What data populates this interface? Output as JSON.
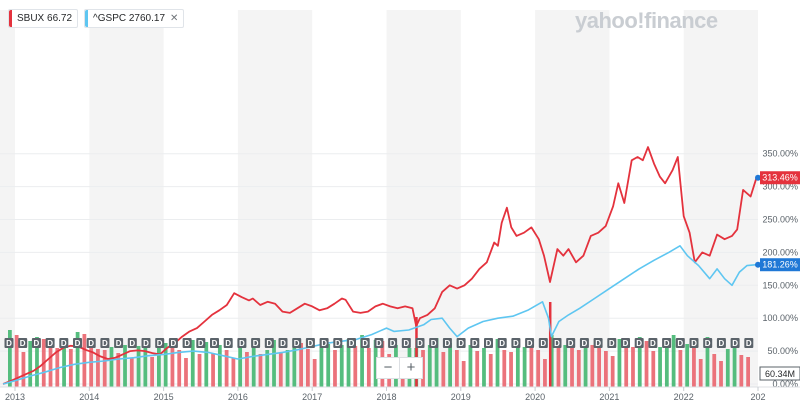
{
  "legend": [
    {
      "ticker": "SBUX",
      "value": "66.72",
      "color": "#e4323d"
    },
    {
      "ticker": "^GSPC",
      "value": "2760.17",
      "color": "#5ec6f1",
      "close": "✕"
    }
  ],
  "brand": "yahoo!finance",
  "zoom": {
    "minus": "−",
    "plus": "+"
  },
  "chart_data": {
    "type": "line",
    "x_ticks": [
      "2013",
      "2014",
      "2015",
      "2016",
      "2017",
      "2018",
      "2019",
      "2020",
      "2021",
      "2022",
      "202"
    ],
    "y_ticks": [
      "0.00%",
      "50.00%",
      "100.00%",
      "150.00%",
      "200.00%",
      "250.00%",
      "300.00%",
      "350.00%"
    ],
    "ylim": [
      0,
      360
    ],
    "x_range": [
      2012.83,
      2023.0
    ],
    "price_labels": [
      {
        "series": "SBUX",
        "text": "313.46%",
        "value": 313.46,
        "color": "#e4323d"
      },
      {
        "series": "^GSPC",
        "text": "181.26%",
        "value": 181.26,
        "color": "#1f78d6"
      }
    ],
    "volume_label": "60.34M",
    "dividend_marker": "D",
    "alt_bands": true,
    "series": [
      {
        "name": "SBUX",
        "color": "#e4323d",
        "points": [
          [
            2012.84,
            0
          ],
          [
            2012.95,
            5
          ],
          [
            2013.05,
            10
          ],
          [
            2013.15,
            15
          ],
          [
            2013.25,
            20
          ],
          [
            2013.35,
            28
          ],
          [
            2013.45,
            38
          ],
          [
            2013.55,
            48
          ],
          [
            2013.65,
            55
          ],
          [
            2013.75,
            58
          ],
          [
            2013.85,
            57
          ],
          [
            2013.95,
            52
          ],
          [
            2014.05,
            48
          ],
          [
            2014.15,
            42
          ],
          [
            2014.25,
            38
          ],
          [
            2014.35,
            40
          ],
          [
            2014.45,
            45
          ],
          [
            2014.55,
            50
          ],
          [
            2014.65,
            51
          ],
          [
            2014.75,
            50
          ],
          [
            2014.85,
            47
          ],
          [
            2014.95,
            45
          ],
          [
            2015.05,
            55
          ],
          [
            2015.15,
            62
          ],
          [
            2015.25,
            72
          ],
          [
            2015.35,
            80
          ],
          [
            2015.45,
            85
          ],
          [
            2015.55,
            95
          ],
          [
            2015.65,
            105
          ],
          [
            2015.75,
            112
          ],
          [
            2015.85,
            120
          ],
          [
            2015.95,
            138
          ],
          [
            2016.05,
            132
          ],
          [
            2016.15,
            127
          ],
          [
            2016.2,
            130
          ],
          [
            2016.3,
            120
          ],
          [
            2016.4,
            125
          ],
          [
            2016.5,
            122
          ],
          [
            2016.6,
            110
          ],
          [
            2016.7,
            108
          ],
          [
            2016.8,
            115
          ],
          [
            2016.9,
            122
          ],
          [
            2017.0,
            118
          ],
          [
            2017.1,
            112
          ],
          [
            2017.2,
            115
          ],
          [
            2017.3,
            122
          ],
          [
            2017.4,
            130
          ],
          [
            2017.45,
            128
          ],
          [
            2017.55,
            110
          ],
          [
            2017.65,
            108
          ],
          [
            2017.75,
            110
          ],
          [
            2017.85,
            118
          ],
          [
            2017.95,
            122
          ],
          [
            2018.05,
            118
          ],
          [
            2018.15,
            115
          ],
          [
            2018.25,
            118
          ],
          [
            2018.35,
            115
          ],
          [
            2018.4,
            88
          ],
          [
            2018.45,
            100
          ],
          [
            2018.55,
            105
          ],
          [
            2018.65,
            115
          ],
          [
            2018.75,
            140
          ],
          [
            2018.85,
            150
          ],
          [
            2018.95,
            145
          ],
          [
            2019.05,
            150
          ],
          [
            2019.15,
            160
          ],
          [
            2019.25,
            175
          ],
          [
            2019.35,
            185
          ],
          [
            2019.45,
            215
          ],
          [
            2019.5,
            210
          ],
          [
            2019.55,
            245
          ],
          [
            2019.62,
            268
          ],
          [
            2019.68,
            238
          ],
          [
            2019.75,
            225
          ],
          [
            2019.85,
            230
          ],
          [
            2019.95,
            238
          ],
          [
            2020.05,
            220
          ],
          [
            2020.12,
            195
          ],
          [
            2020.2,
            155
          ],
          [
            2020.3,
            205
          ],
          [
            2020.38,
            195
          ],
          [
            2020.45,
            205
          ],
          [
            2020.55,
            185
          ],
          [
            2020.65,
            195
          ],
          [
            2020.75,
            225
          ],
          [
            2020.85,
            230
          ],
          [
            2020.95,
            240
          ],
          [
            2021.05,
            270
          ],
          [
            2021.12,
            305
          ],
          [
            2021.2,
            275
          ],
          [
            2021.3,
            340
          ],
          [
            2021.38,
            345
          ],
          [
            2021.45,
            340
          ],
          [
            2021.52,
            360
          ],
          [
            2021.6,
            335
          ],
          [
            2021.68,
            315
          ],
          [
            2021.75,
            305
          ],
          [
            2021.85,
            325
          ],
          [
            2021.92,
            345
          ],
          [
            2022.0,
            255
          ],
          [
            2022.08,
            230
          ],
          [
            2022.15,
            185
          ],
          [
            2022.25,
            200
          ],
          [
            2022.35,
            195
          ],
          [
            2022.45,
            227
          ],
          [
            2022.55,
            220
          ],
          [
            2022.65,
            225
          ],
          [
            2022.72,
            235
          ],
          [
            2022.8,
            295
          ],
          [
            2022.9,
            285
          ],
          [
            2022.98,
            313.46
          ]
        ]
      },
      {
        "name": "^GSPC",
        "color": "#5ec6f1",
        "points": [
          [
            2012.84,
            0
          ],
          [
            2013.0,
            5
          ],
          [
            2013.2,
            12
          ],
          [
            2013.4,
            18
          ],
          [
            2013.6,
            25
          ],
          [
            2013.8,
            30
          ],
          [
            2014.0,
            33
          ],
          [
            2014.2,
            35
          ],
          [
            2014.4,
            38
          ],
          [
            2014.6,
            40
          ],
          [
            2014.8,
            43
          ],
          [
            2015.0,
            45
          ],
          [
            2015.2,
            48
          ],
          [
            2015.4,
            50
          ],
          [
            2015.6,
            48
          ],
          [
            2015.8,
            43
          ],
          [
            2016.0,
            38
          ],
          [
            2016.2,
            42
          ],
          [
            2016.4,
            45
          ],
          [
            2016.6,
            48
          ],
          [
            2016.8,
            52
          ],
          [
            2017.0,
            57
          ],
          [
            2017.2,
            62
          ],
          [
            2017.4,
            65
          ],
          [
            2017.6,
            68
          ],
          [
            2017.8,
            75
          ],
          [
            2018.0,
            85
          ],
          [
            2018.1,
            80
          ],
          [
            2018.3,
            82
          ],
          [
            2018.5,
            90
          ],
          [
            2018.6,
            98
          ],
          [
            2018.75,
            100
          ],
          [
            2018.85,
            85
          ],
          [
            2018.95,
            72
          ],
          [
            2019.1,
            85
          ],
          [
            2019.3,
            95
          ],
          [
            2019.5,
            100
          ],
          [
            2019.7,
            103
          ],
          [
            2019.9,
            112
          ],
          [
            2020.1,
            125
          ],
          [
            2020.18,
            100
          ],
          [
            2020.22,
            72
          ],
          [
            2020.32,
            95
          ],
          [
            2020.45,
            105
          ],
          [
            2020.6,
            115
          ],
          [
            2020.8,
            130
          ],
          [
            2021.0,
            145
          ],
          [
            2021.2,
            160
          ],
          [
            2021.4,
            175
          ],
          [
            2021.6,
            188
          ],
          [
            2021.8,
            200
          ],
          [
            2021.95,
            210
          ],
          [
            2022.05,
            195
          ],
          [
            2022.2,
            180
          ],
          [
            2022.35,
            160
          ],
          [
            2022.45,
            175
          ],
          [
            2022.55,
            160
          ],
          [
            2022.65,
            150
          ],
          [
            2022.75,
            170
          ],
          [
            2022.85,
            180
          ],
          [
            2022.98,
            181.26
          ]
        ]
      }
    ],
    "volume": [
      57,
      52,
      35,
      46,
      50,
      48,
      44,
      39,
      41,
      38,
      55,
      53,
      46,
      38,
      37,
      40,
      34,
      42,
      29,
      41,
      44,
      30,
      42,
      44,
      41,
      37,
      29,
      47,
      33,
      45,
      34,
      42,
      37,
      29,
      41,
      35,
      39,
      33,
      37,
      47,
      34,
      37,
      48,
      44,
      38,
      28,
      40,
      43,
      37,
      42,
      48,
      41,
      52,
      39,
      47,
      46,
      33,
      42,
      30,
      39,
      39,
      37,
      42,
      49,
      35,
      44,
      37,
      26,
      42,
      36,
      39,
      33,
      48,
      37,
      35,
      40,
      40,
      39,
      37,
      28,
      52,
      41,
      42,
      41,
      37,
      46,
      42,
      40,
      36,
      31,
      48,
      44,
      40,
      50,
      46,
      36,
      40,
      42,
      52,
      37,
      43,
      42,
      28,
      50,
      33,
      26,
      38,
      41,
      32,
      30
    ]
  }
}
